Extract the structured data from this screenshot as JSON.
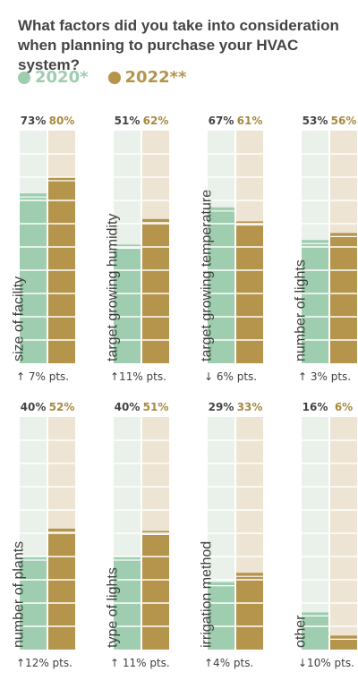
{
  "title": "What factors did you take into consideration when planning to purchase your HVAC system?",
  "legend": [
    {
      "label": "2020*",
      "color": "#9ecdaf"
    },
    {
      "label": "2022**",
      "color": "#b5944b"
    }
  ],
  "colors": {
    "bg_2020": "#e9f1ea",
    "bg_2022": "#ede4d3",
    "fill_2020": "#9ecdaf",
    "fill_2022": "#b5944b",
    "text_2020": "#444444",
    "text_2022": "#a9893f"
  },
  "chart_data": {
    "type": "bar",
    "ylim": [
      0,
      100
    ],
    "series": [
      {
        "name": "2020*",
        "values": [
          73,
          51,
          67,
          53,
          40,
          40,
          29,
          16
        ]
      },
      {
        "name": "2022**",
        "values": [
          80,
          62,
          61,
          56,
          52,
          51,
          33,
          6
        ]
      }
    ],
    "panels": [
      {
        "factor": "size of facility",
        "v2020": 73,
        "v2022": 80,
        "label2020": "73%",
        "label2022": "80%",
        "change": "↑ 7% pts."
      },
      {
        "factor": "target growing humidity",
        "v2020": 51,
        "v2022": 62,
        "label2020": "51%",
        "label2022": "62%",
        "change": "↑11% pts."
      },
      {
        "factor": "target growing temperature",
        "v2020": 67,
        "v2022": 61,
        "label2020": "67%",
        "label2022": "61%",
        "change": "↓ 6% pts."
      },
      {
        "factor": "number of lights",
        "v2020": 53,
        "v2022": 56,
        "label2020": "53%",
        "label2022": "56%",
        "change": "↑ 3% pts."
      },
      {
        "factor": "number of plants",
        "v2020": 40,
        "v2022": 52,
        "label2020": "40%",
        "label2022": "52%",
        "change": "↑12% pts."
      },
      {
        "factor": "type of lights",
        "v2020": 40,
        "v2022": 51,
        "label2020": "40%",
        "label2022": "51%",
        "change": "↑ 11% pts."
      },
      {
        "factor": "irrigation method",
        "v2020": 29,
        "v2022": 33,
        "label2020": "29%",
        "label2022": "33%",
        "change": "↑4% pts."
      },
      {
        "factor": "other",
        "v2020": 16,
        "v2022": 6,
        "label2020": "16%",
        "label2022": "6%",
        "change": "↓10% pts."
      }
    ]
  }
}
